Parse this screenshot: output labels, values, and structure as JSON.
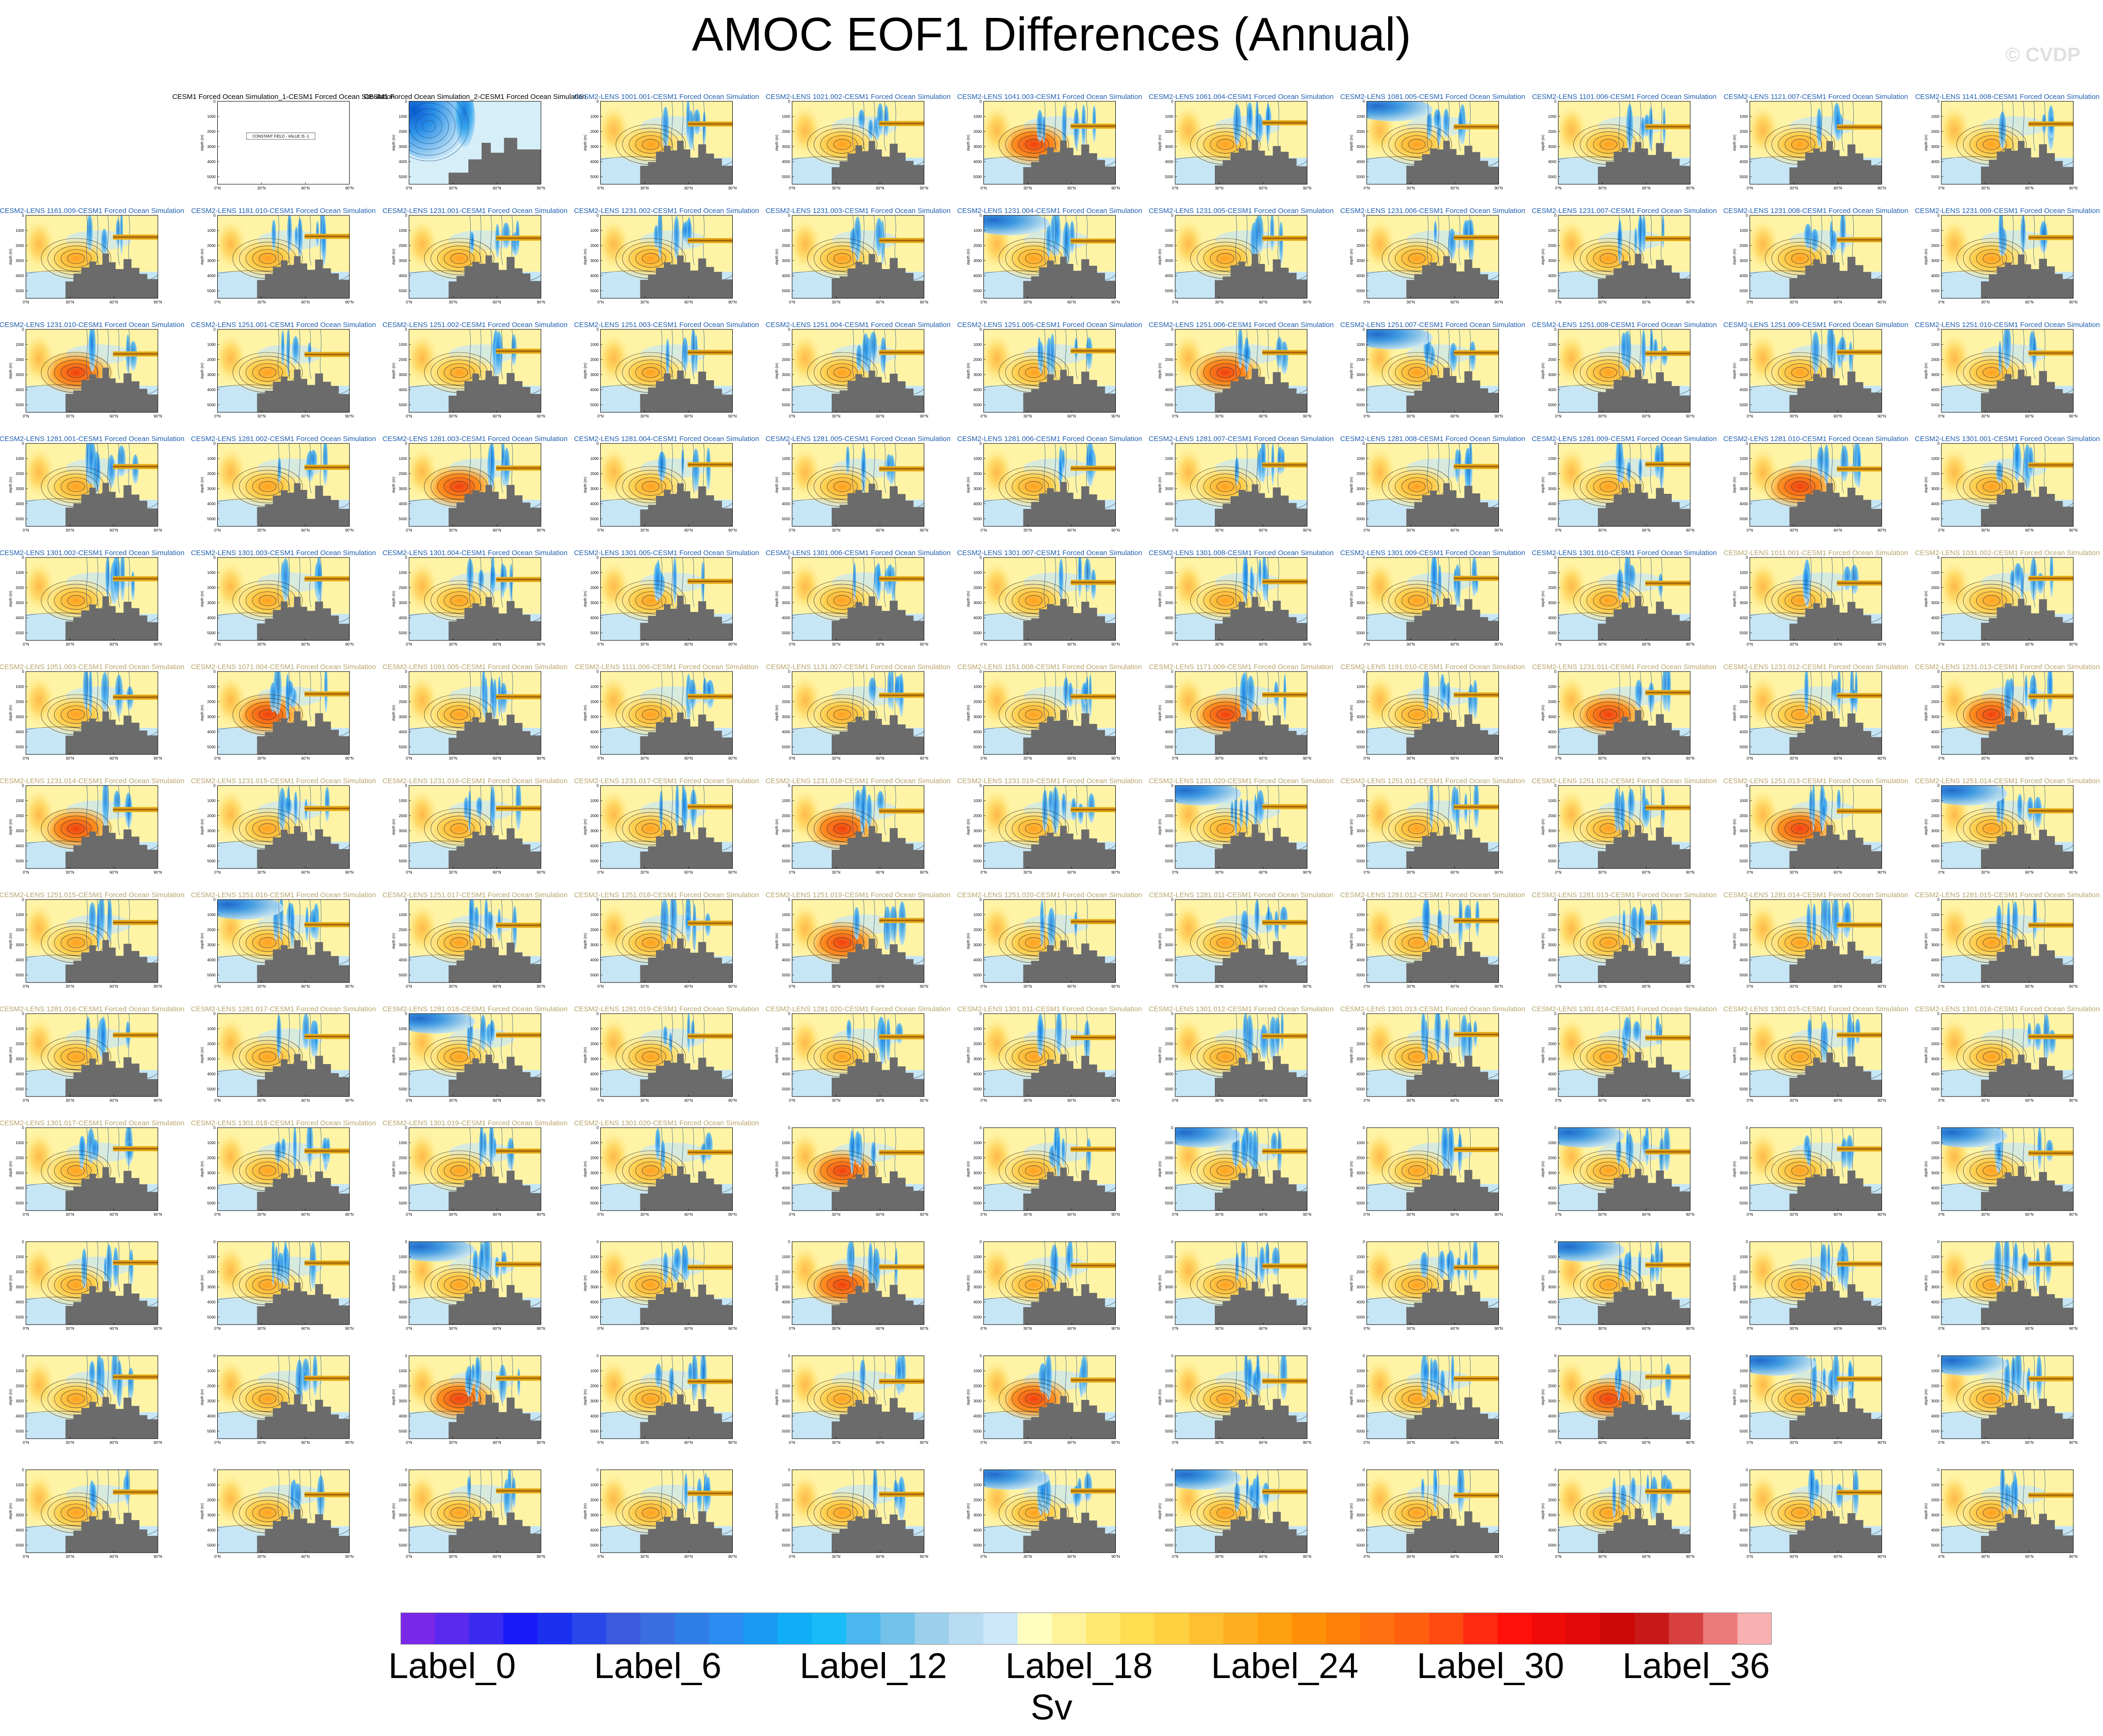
{
  "figure": {
    "title": "AMOC EOF1 Differences (Annual)",
    "watermark": "© CVDP",
    "units": "Sv"
  },
  "colors": {
    "title_blue": "#1f5fb0",
    "title_tan": "#b8a46a",
    "land": "#6b6b6b",
    "contour": "#2a2a2a",
    "contour_blue": "#1a4f8a"
  },
  "chart_data": {
    "type": "contour",
    "layout": {
      "rows": 13,
      "cols": 11
    },
    "y_axis": {
      "label": "depth (m)",
      "ticks": [
        "0",
        "1000",
        "2000",
        "3000",
        "4000",
        "5000"
      ],
      "range": [
        0,
        5500
      ]
    },
    "x_axis": {
      "ticks": [
        "0°N",
        "30°N",
        "60°N",
        "90°N"
      ],
      "range": [
        0,
        90
      ]
    },
    "special_panels": [
      {
        "index": 0,
        "kind": "empty"
      },
      {
        "index": 1,
        "kind": "constant",
        "title": "CESM1 Forced Ocean Simulation_1-CESM1 Forced Ocean Simulation",
        "note": "CONSTANT FIELD - VALUE IS -1"
      },
      {
        "index": 2,
        "kind": "ocean-blue",
        "title": "CESM1 Forced Ocean Simulation_2-CESM1 Forced Ocean Simulation"
      }
    ],
    "panel_titles": [
      "CESM2-LENS 1001.001-CESM1 Forced Ocean Simulation",
      "CESM2-LENS 1021.002-CESM1 Forced Ocean Simulation",
      "CESM2-LENS 1041.003-CESM1 Forced Ocean Simulation",
      "CESM2-LENS 1061.004-CESM1 Forced Ocean Simulation",
      "CESM2-LENS 1081.005-CESM1 Forced Ocean Simulation",
      "CESM2-LENS 1101.006-CESM1 Forced Ocean Simulation",
      "CESM2-LENS 1121.007-CESM1 Forced Ocean Simulation",
      "CESM2-LENS 1141.008-CESM1 Forced Ocean Simulation",
      "CESM2-LENS 1161.009-CESM1 Forced Ocean Simulation",
      "CESM2-LENS 1181.010-CESM1 Forced Ocean Simulation",
      "CESM2-LENS 1231.001-CESM1 Forced Ocean Simulation",
      "CESM2-LENS 1231.002-CESM1 Forced Ocean Simulation",
      "CESM2-LENS 1231.003-CESM1 Forced Ocean Simulation",
      "CESM2-LENS 1231.004-CESM1 Forced Ocean Simulation",
      "CESM2-LENS 1231.005-CESM1 Forced Ocean Simulation",
      "CESM2-LENS 1231.006-CESM1 Forced Ocean Simulation",
      "CESM2-LENS 1231.007-CESM1 Forced Ocean Simulation",
      "CESM2-LENS 1231.008-CESM1 Forced Ocean Simulation",
      "CESM2-LENS 1231.009-CESM1 Forced Ocean Simulation",
      "CESM2-LENS 1231.010-CESM1 Forced Ocean Simulation",
      "CESM2-LENS 1251.001-CESM1 Forced Ocean Simulation",
      "CESM2-LENS 1251.002-CESM1 Forced Ocean Simulation",
      "CESM2-LENS 1251.003-CESM1 Forced Ocean Simulation",
      "CESM2-LENS 1251.004-CESM1 Forced Ocean Simulation",
      "CESM2-LENS 1251.005-CESM1 Forced Ocean Simulation",
      "CESM2-LENS 1251.006-CESM1 Forced Ocean Simulation",
      "CESM2-LENS 1251.007-CESM1 Forced Ocean Simulation",
      "CESM2-LENS 1251.008-CESM1 Forced Ocean Simulation",
      "CESM2-LENS 1251.009-CESM1 Forced Ocean Simulation",
      "CESM2-LENS 1251.010-CESM1 Forced Ocean Simulation",
      "CESM2-LENS 1281.001-CESM1 Forced Ocean Simulation",
      "CESM2-LENS 1281.002-CESM1 Forced Ocean Simulation",
      "CESM2-LENS 1281.003-CESM1 Forced Ocean Simulation",
      "CESM2-LENS 1281.004-CESM1 Forced Ocean Simulation",
      "CESM2-LENS 1281.005-CESM1 Forced Ocean Simulation",
      "CESM2-LENS 1281.006-CESM1 Forced Ocean Simulation",
      "CESM2-LENS 1281.007-CESM1 Forced Ocean Simulation",
      "CESM2-LENS 1281.008-CESM1 Forced Ocean Simulation",
      "CESM2-LENS 1281.009-CESM1 Forced Ocean Simulation",
      "CESM2-LENS 1281.010-CESM1 Forced Ocean Simulation",
      "CESM2-LENS 1301.001-CESM1 Forced Ocean Simulation",
      "CESM2-LENS 1301.002-CESM1 Forced Ocean Simulation",
      "CESM2-LENS 1301.003-CESM1 Forced Ocean Simulation",
      "CESM2-LENS 1301.004-CESM1 Forced Ocean Simulation",
      "CESM2-LENS 1301.005-CESM1 Forced Ocean Simulation",
      "CESM2-LENS 1301.006-CESM1 Forced Ocean Simulation",
      "CESM2-LENS 1301.007-CESM1 Forced Ocean Simulation",
      "CESM2-LENS 1301.008-CESM1 Forced Ocean Simulation",
      "CESM2-LENS 1301.009-CESM1 Forced Ocean Simulation",
      "CESM2-LENS 1301.010-CESM1 Forced Ocean Simulation",
      "CESM2-LENS 1011.001-CESM1 Forced Ocean Simulation",
      "CESM2-LENS 1031.002-CESM1 Forced Ocean Simulation",
      "CESM2-LENS 1051.003-CESM1 Forced Ocean Simulation",
      "CESM2-LENS 1071.004-CESM1 Forced Ocean Simulation",
      "CESM2-LENS 1091.005-CESM1 Forced Ocean Simulation",
      "CESM2-LENS 1111.006-CESM1 Forced Ocean Simulation",
      "CESM2-LENS 1131.007-CESM1 Forced Ocean Simulation",
      "CESM2-LENS 1151.008-CESM1 Forced Ocean Simulation",
      "CESM2-LENS 1171.009-CESM1 Forced Ocean Simulation",
      "CESM2-LENS 1191.010-CESM1 Forced Ocean Simulation",
      "CESM2-LENS 1231.011-CESM1 Forced Ocean Simulation",
      "CESM2-LENS 1231.012-CESM1 Forced Ocean Simulation",
      "CESM2-LENS 1231.013-CESM1 Forced Ocean Simulation",
      "CESM2-LENS 1231.014-CESM1 Forced Ocean Simulation",
      "CESM2-LENS 1231.015-CESM1 Forced Ocean Simulation",
      "CESM2-LENS 1231.016-CESM1 Forced Ocean Simulation",
      "CESM2-LENS 1231.017-CESM1 Forced Ocean Simulation",
      "CESM2-LENS 1231.018-CESM1 Forced Ocean Simulation",
      "CESM2-LENS 1231.019-CESM1 Forced Ocean Simulation",
      "CESM2-LENS 1231.020-CESM1 Forced Ocean Simulation",
      "CESM2-LENS 1251.011-CESM1 Forced Ocean Simulation",
      "CESM2-LENS 1251.012-CESM1 Forced Ocean Simulation",
      "CESM2-LENS 1251.013-CESM1 Forced Ocean Simulation",
      "CESM2-LENS 1251.014-CESM1 Forced Ocean Simulation",
      "CESM2-LENS 1251.015-CESM1 Forced Ocean Simulation",
      "CESM2-LENS 1251.016-CESM1 Forced Ocean Simulation",
      "CESM2-LENS 1251.017-CESM1 Forced Ocean Simulation",
      "CESM2-LENS 1251.018-CESM1 Forced Ocean Simulation",
      "CESM2-LENS 1251.019-CESM1 Forced Ocean Simulation",
      "CESM2-LENS 1251.020-CESM1 Forced Ocean Simulation",
      "CESM2-LENS 1281.011-CESM1 Forced Ocean Simulation",
      "CESM2-LENS 1281.012-CESM1 Forced Ocean Simulation",
      "CESM2-LENS 1281.013-CESM1 Forced Ocean Simulation",
      "CESM2-LENS 1281.014-CESM1 Forced Ocean Simulation",
      "CESM2-LENS 1281.015-CESM1 Forced Ocean Simulation",
      "CESM2-LENS 1281.016-CESM1 Forced Ocean Simulation",
      "CESM2-LENS 1281.017-CESM1 Forced Ocean Simulation",
      "CESM2-LENS 1281.018-CESM1 Forced Ocean Simulation",
      "CESM2-LENS 1281.019-CESM1 Forced Ocean Simulation",
      "CESM2-LENS 1281.020-CESM1 Forced Ocean Simulation",
      "CESM2-LENS 1301.011-CESM1 Forced Ocean Simulation",
      "CESM2-LENS 1301.012-CESM1 Forced Ocean Simulation",
      "CESM2-LENS 1301.013-CESM1 Forced Ocean Simulation",
      "CESM2-LENS 1301.014-CESM1 Forced Ocean Simulation",
      "CESM2-LENS 1301.015-CESM1 Forced Ocean Simulation",
      "CESM2-LENS 1301.016-CESM1 Forced Ocean Simulation",
      "CESM2-LENS 1301.017-CESM1 Forced Ocean Simulation",
      "CESM2-LENS 1301.018-CESM1 Forced Ocean Simulation",
      "CESM2-LENS 1301.019-CESM1 Forced Ocean Simulation",
      "CESM2-LENS 1301.020-CESM1 Forced Ocean Simulation"
    ],
    "colorbar": {
      "colors": [
        "#7a28e8",
        "#5a2aee",
        "#3a2af0",
        "#1a1af8",
        "#1a30f0",
        "#2a48ea",
        "#3a5ae0",
        "#3a6ee0",
        "#2e7ee6",
        "#2a8cf0",
        "#1a9af2",
        "#10aef6",
        "#18bcf8",
        "#4ab8ee",
        "#72c2ea",
        "#9ccfec",
        "#b8dcf2",
        "#cce8f8",
        "#fffcc0",
        "#fff29a",
        "#ffe870",
        "#ffdc50",
        "#ffd040",
        "#ffc030",
        "#ffb020",
        "#ffa010",
        "#ff9008",
        "#ff8008",
        "#ff7010",
        "#ff6010",
        "#ff4a10",
        "#ff2a10",
        "#ff1008",
        "#f00a08",
        "#e00808",
        "#cc0808",
        "#c81818",
        "#d84040",
        "#ec7a7a",
        "#f8b0b0"
      ],
      "labels": [
        "Label_0",
        "Label_6",
        "Label_12",
        "Label_18",
        "Label_24",
        "Label_30",
        "Label_36"
      ],
      "label_box_index": [
        1,
        7,
        13,
        19,
        25,
        31,
        37
      ]
    }
  }
}
